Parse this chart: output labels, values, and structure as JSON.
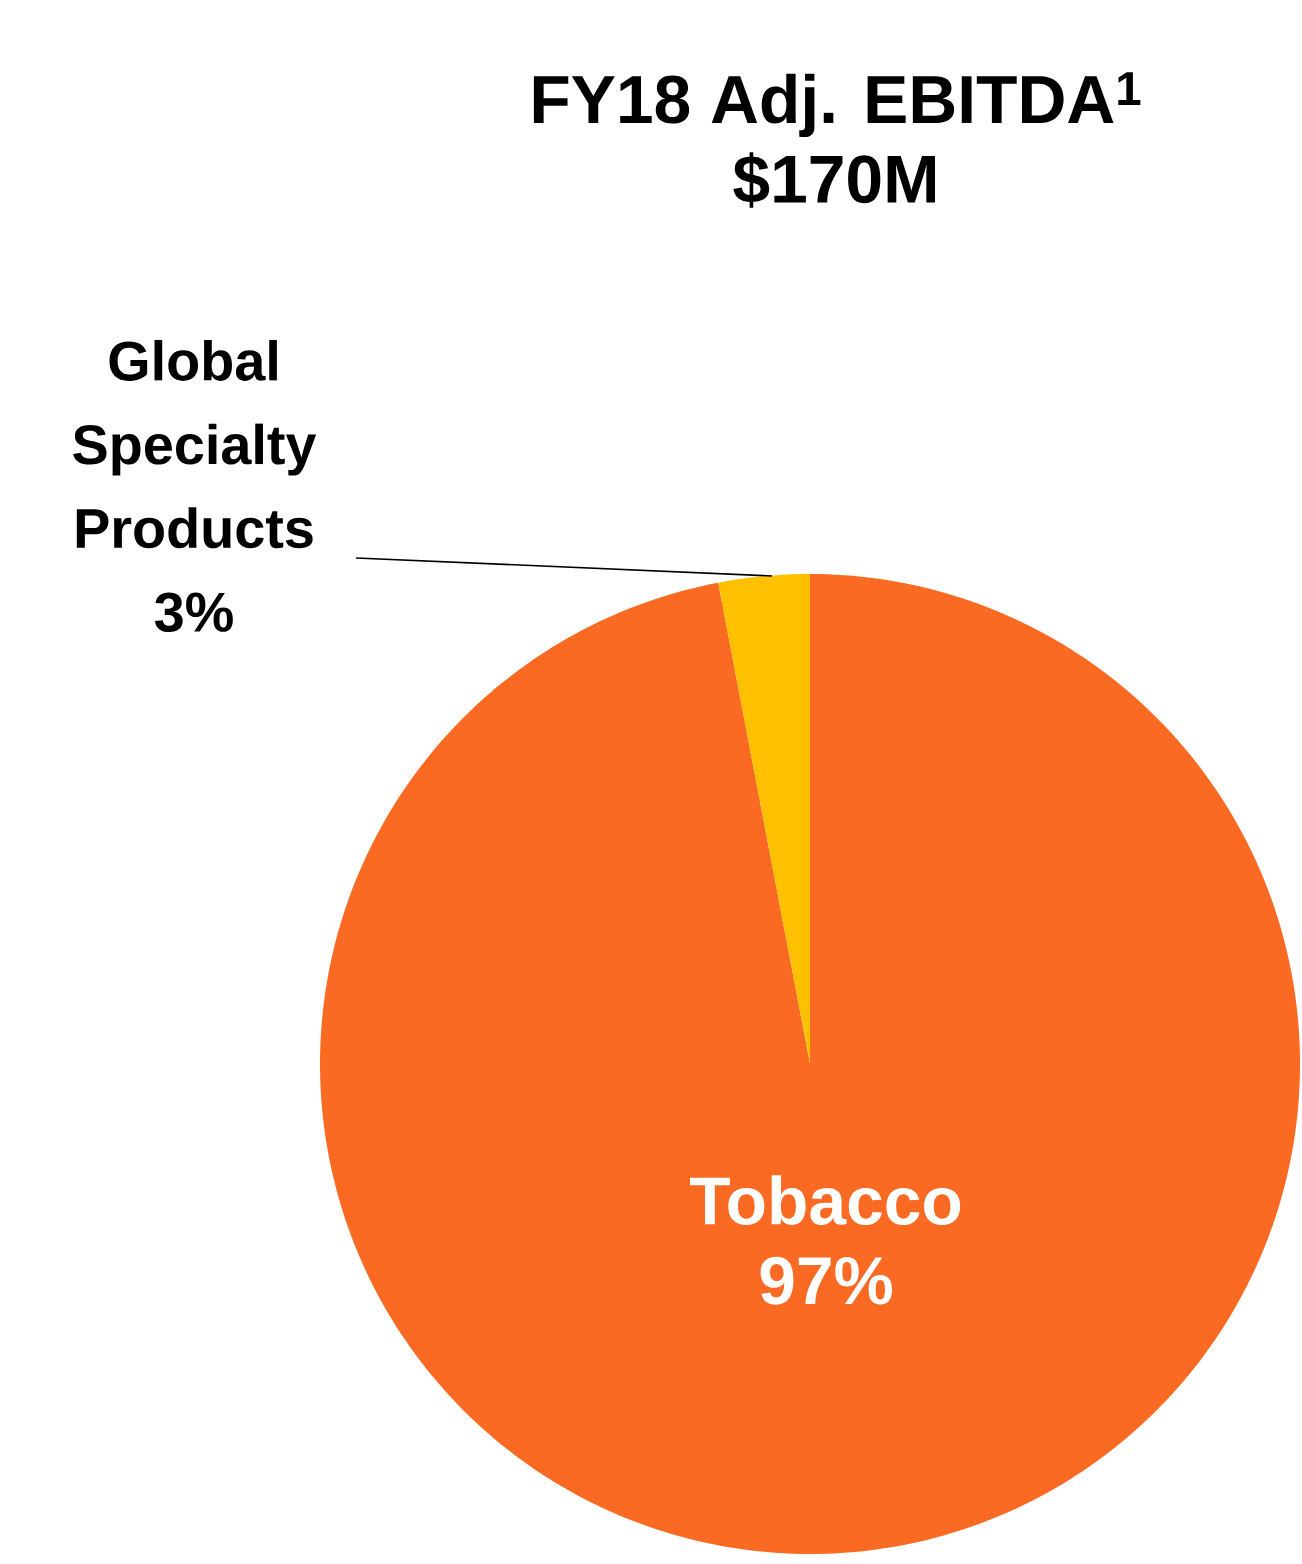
{
  "chart_data": {
    "type": "pie",
    "title": "FY18 Adj. EBITDA$^{1}$",
    "subtitle": "$170M",
    "categories": [
      "Tobacco",
      "Global Specialty Products"
    ],
    "values": [
      97,
      3
    ],
    "colors": [
      "#fa6a23",
      "#ffc000"
    ],
    "value_labels": [
      "97%",
      "3%"
    ]
  }
}
